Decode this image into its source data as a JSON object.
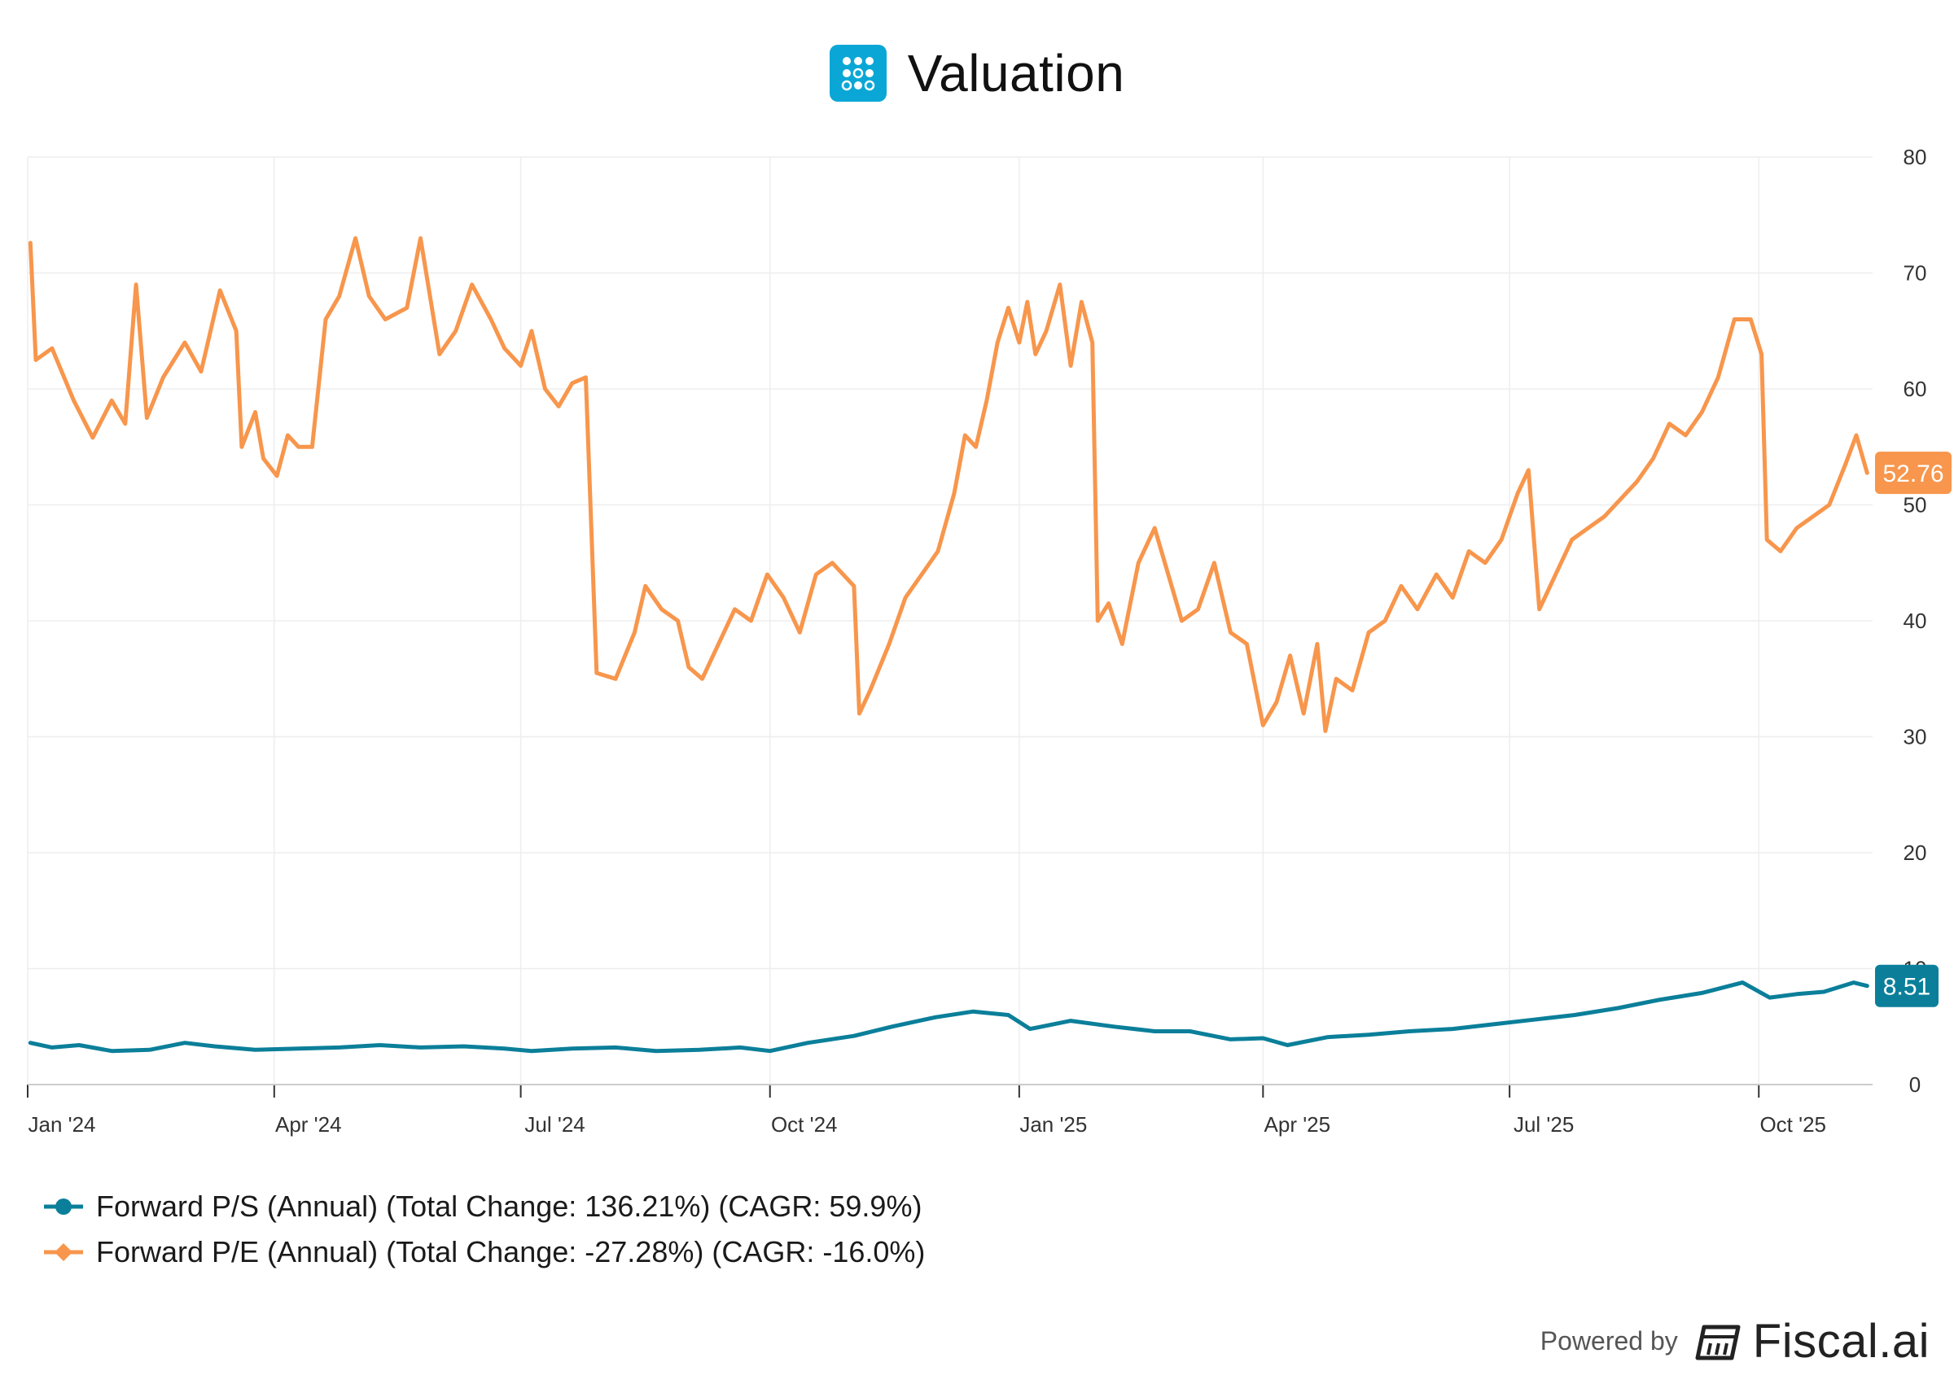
{
  "header": {
    "title": "Valuation"
  },
  "colors": {
    "ps": "#0b7f9a",
    "pe": "#f7964c",
    "grid": "#eeeeee",
    "logo_bg": "#0aa7d6"
  },
  "chart_data": {
    "type": "line",
    "title": "Valuation",
    "xlabel": "",
    "ylabel": "",
    "y_axis_side": "right",
    "ylim": [
      0,
      80
    ],
    "yticks": [
      "0",
      "10",
      "20",
      "30",
      "40",
      "50",
      "60",
      "70",
      "80"
    ],
    "x_range": [
      "2024-01-01",
      "2025-11-12"
    ],
    "xticks": [
      {
        "date": "2024-01-01",
        "label": "Jan '24"
      },
      {
        "date": "2024-04-01",
        "label": "Apr '24"
      },
      {
        "date": "2024-07-01",
        "label": "Jul '24"
      },
      {
        "date": "2024-10-01",
        "label": "Oct '24"
      },
      {
        "date": "2025-01-01",
        "label": "Jan '25"
      },
      {
        "date": "2025-04-01",
        "label": "Apr '25"
      },
      {
        "date": "2025-07-01",
        "label": "Jul '25"
      },
      {
        "date": "2025-10-01",
        "label": "Oct '25"
      }
    ],
    "grid": true,
    "legend": "bottom-left",
    "series": [
      {
        "key": "ps",
        "name": "Forward P/S (Annual) (Total Change: 136.21%) (CAGR: 59.9%)",
        "last_value_label": "8.51",
        "points": [
          [
            "2024-01-02",
            3.6
          ],
          [
            "2024-01-10",
            3.2
          ],
          [
            "2024-01-20",
            3.4
          ],
          [
            "2024-02-01",
            2.9
          ],
          [
            "2024-02-15",
            3.0
          ],
          [
            "2024-02-28",
            3.6
          ],
          [
            "2024-03-10",
            3.3
          ],
          [
            "2024-03-25",
            3.0
          ],
          [
            "2024-04-10",
            3.1
          ],
          [
            "2024-04-25",
            3.2
          ],
          [
            "2024-05-10",
            3.4
          ],
          [
            "2024-05-25",
            3.2
          ],
          [
            "2024-06-10",
            3.3
          ],
          [
            "2024-06-25",
            3.1
          ],
          [
            "2024-07-05",
            2.9
          ],
          [
            "2024-07-20",
            3.1
          ],
          [
            "2024-08-05",
            3.2
          ],
          [
            "2024-08-20",
            2.9
          ],
          [
            "2024-09-05",
            3.0
          ],
          [
            "2024-09-20",
            3.2
          ],
          [
            "2024-10-01",
            2.9
          ],
          [
            "2024-10-15",
            3.6
          ],
          [
            "2024-11-01",
            4.2
          ],
          [
            "2024-11-15",
            5.0
          ],
          [
            "2024-12-01",
            5.8
          ],
          [
            "2024-12-15",
            6.3
          ],
          [
            "2024-12-28",
            6.0
          ],
          [
            "2025-01-05",
            4.8
          ],
          [
            "2025-01-20",
            5.5
          ],
          [
            "2025-02-05",
            5.0
          ],
          [
            "2025-02-20",
            4.6
          ],
          [
            "2025-03-05",
            4.6
          ],
          [
            "2025-03-20",
            3.9
          ],
          [
            "2025-04-01",
            4.0
          ],
          [
            "2025-04-10",
            3.4
          ],
          [
            "2025-04-25",
            4.1
          ],
          [
            "2025-05-10",
            4.3
          ],
          [
            "2025-05-25",
            4.6
          ],
          [
            "2025-06-10",
            4.8
          ],
          [
            "2025-06-25",
            5.2
          ],
          [
            "2025-07-10",
            5.6
          ],
          [
            "2025-07-25",
            6.0
          ],
          [
            "2025-08-10",
            6.6
          ],
          [
            "2025-08-25",
            7.3
          ],
          [
            "2025-09-10",
            7.9
          ],
          [
            "2025-09-25",
            8.8
          ],
          [
            "2025-10-05",
            7.5
          ],
          [
            "2025-10-15",
            7.8
          ],
          [
            "2025-10-25",
            8.0
          ],
          [
            "2025-11-05",
            8.8
          ],
          [
            "2025-11-10",
            8.51
          ]
        ]
      },
      {
        "key": "pe",
        "name": "Forward P/E (Annual) (Total Change: -27.28%) (CAGR: -16.0%)",
        "last_value_label": "52.76",
        "points": [
          [
            "2024-01-02",
            72.6
          ],
          [
            "2024-01-04",
            62.5
          ],
          [
            "2024-01-10",
            63.5
          ],
          [
            "2024-01-18",
            59.0
          ],
          [
            "2024-01-25",
            55.8
          ],
          [
            "2024-02-01",
            59.0
          ],
          [
            "2024-02-06",
            57.0
          ],
          [
            "2024-02-10",
            69.0
          ],
          [
            "2024-02-14",
            57.5
          ],
          [
            "2024-02-20",
            61.0
          ],
          [
            "2024-02-28",
            64.0
          ],
          [
            "2024-03-05",
            61.5
          ],
          [
            "2024-03-12",
            68.5
          ],
          [
            "2024-03-18",
            65.0
          ],
          [
            "2024-03-20",
            55.0
          ],
          [
            "2024-03-25",
            58.0
          ],
          [
            "2024-03-28",
            54.0
          ],
          [
            "2024-04-02",
            52.5
          ],
          [
            "2024-04-06",
            56.0
          ],
          [
            "2024-04-10",
            55.0
          ],
          [
            "2024-04-15",
            55.0
          ],
          [
            "2024-04-20",
            66.0
          ],
          [
            "2024-04-25",
            68.0
          ],
          [
            "2024-05-01",
            73.0
          ],
          [
            "2024-05-06",
            68.0
          ],
          [
            "2024-05-12",
            66.0
          ],
          [
            "2024-05-20",
            67.0
          ],
          [
            "2024-05-25",
            73.0
          ],
          [
            "2024-06-01",
            63.0
          ],
          [
            "2024-06-07",
            65.0
          ],
          [
            "2024-06-13",
            69.0
          ],
          [
            "2024-06-20",
            66.0
          ],
          [
            "2024-06-25",
            63.5
          ],
          [
            "2024-07-01",
            62.0
          ],
          [
            "2024-07-05",
            65.0
          ],
          [
            "2024-07-10",
            60.0
          ],
          [
            "2024-07-15",
            58.5
          ],
          [
            "2024-07-20",
            60.5
          ],
          [
            "2024-07-25",
            61.0
          ],
          [
            "2024-07-29",
            35.5
          ],
          [
            "2024-08-05",
            35.0
          ],
          [
            "2024-08-12",
            39.0
          ],
          [
            "2024-08-16",
            43.0
          ],
          [
            "2024-08-22",
            41.0
          ],
          [
            "2024-08-28",
            40.0
          ],
          [
            "2024-09-01",
            36.0
          ],
          [
            "2024-09-06",
            35.0
          ],
          [
            "2024-09-12",
            38.0
          ],
          [
            "2024-09-18",
            41.0
          ],
          [
            "2024-09-24",
            40.0
          ],
          [
            "2024-09-30",
            44.0
          ],
          [
            "2024-10-06",
            42.0
          ],
          [
            "2024-10-12",
            39.0
          ],
          [
            "2024-10-18",
            44.0
          ],
          [
            "2024-10-24",
            45.0
          ],
          [
            "2024-11-01",
            43.0
          ],
          [
            "2024-11-03",
            32.0
          ],
          [
            "2024-11-07",
            34.0
          ],
          [
            "2024-11-14",
            38.0
          ],
          [
            "2024-11-20",
            42.0
          ],
          [
            "2024-11-26",
            44.0
          ],
          [
            "2024-12-02",
            46.0
          ],
          [
            "2024-12-08",
            51.0
          ],
          [
            "2024-12-12",
            56.0
          ],
          [
            "2024-12-16",
            55.0
          ],
          [
            "2024-12-20",
            59.0
          ],
          [
            "2024-12-24",
            64.0
          ],
          [
            "2024-12-28",
            67.0
          ],
          [
            "2025-01-01",
            64.0
          ],
          [
            "2025-01-04",
            67.5
          ],
          [
            "2025-01-07",
            63.0
          ],
          [
            "2025-01-11",
            65.0
          ],
          [
            "2025-01-16",
            69.0
          ],
          [
            "2025-01-20",
            62.0
          ],
          [
            "2025-01-24",
            67.5
          ],
          [
            "2025-01-28",
            64.0
          ],
          [
            "2025-01-30",
            40.0
          ],
          [
            "2025-02-03",
            41.5
          ],
          [
            "2025-02-08",
            38.0
          ],
          [
            "2025-02-14",
            45.0
          ],
          [
            "2025-02-20",
            48.0
          ],
          [
            "2025-02-25",
            44.0
          ],
          [
            "2025-03-02",
            40.0
          ],
          [
            "2025-03-08",
            41.0
          ],
          [
            "2025-03-14",
            45.0
          ],
          [
            "2025-03-20",
            39.0
          ],
          [
            "2025-03-26",
            38.0
          ],
          [
            "2025-04-01",
            31.0
          ],
          [
            "2025-04-06",
            33.0
          ],
          [
            "2025-04-11",
            37.0
          ],
          [
            "2025-04-16",
            32.0
          ],
          [
            "2025-04-21",
            38.0
          ],
          [
            "2025-04-24",
            30.5
          ],
          [
            "2025-04-28",
            35.0
          ],
          [
            "2025-05-04",
            34.0
          ],
          [
            "2025-05-10",
            39.0
          ],
          [
            "2025-05-16",
            40.0
          ],
          [
            "2025-05-22",
            43.0
          ],
          [
            "2025-05-28",
            41.0
          ],
          [
            "2025-06-04",
            44.0
          ],
          [
            "2025-06-10",
            42.0
          ],
          [
            "2025-06-16",
            46.0
          ],
          [
            "2025-06-22",
            45.0
          ],
          [
            "2025-06-28",
            47.0
          ],
          [
            "2025-07-04",
            51.0
          ],
          [
            "2025-07-08",
            53.0
          ],
          [
            "2025-07-12",
            41.0
          ],
          [
            "2025-07-18",
            44.0
          ],
          [
            "2025-07-24",
            47.0
          ],
          [
            "2025-07-30",
            48.0
          ],
          [
            "2025-08-05",
            49.0
          ],
          [
            "2025-08-11",
            50.5
          ],
          [
            "2025-08-17",
            52.0
          ],
          [
            "2025-08-23",
            54.0
          ],
          [
            "2025-08-29",
            57.0
          ],
          [
            "2025-09-04",
            56.0
          ],
          [
            "2025-09-10",
            58.0
          ],
          [
            "2025-09-16",
            61.0
          ],
          [
            "2025-09-22",
            66.0
          ],
          [
            "2025-09-28",
            66.0
          ],
          [
            "2025-10-02",
            63.0
          ],
          [
            "2025-10-04",
            47.0
          ],
          [
            "2025-10-09",
            46.0
          ],
          [
            "2025-10-15",
            48.0
          ],
          [
            "2025-10-21",
            49.0
          ],
          [
            "2025-10-27",
            50.0
          ],
          [
            "2025-11-02",
            53.5
          ],
          [
            "2025-11-06",
            56.0
          ],
          [
            "2025-11-10",
            52.76
          ]
        ]
      }
    ]
  },
  "footer": {
    "powered_by": "Powered by",
    "brand": "Fiscal.ai"
  }
}
